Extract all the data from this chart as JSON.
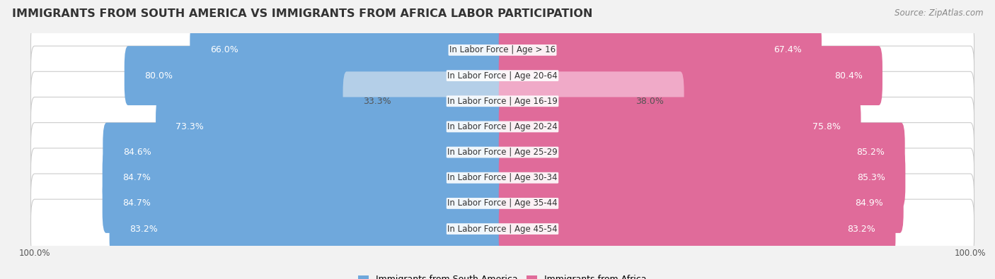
{
  "title": "IMMIGRANTS FROM SOUTH AMERICA VS IMMIGRANTS FROM AFRICA LABOR PARTICIPATION",
  "source": "Source: ZipAtlas.com",
  "categories": [
    "In Labor Force | Age > 16",
    "In Labor Force | Age 20-64",
    "In Labor Force | Age 16-19",
    "In Labor Force | Age 20-24",
    "In Labor Force | Age 25-29",
    "In Labor Force | Age 30-34",
    "In Labor Force | Age 35-44",
    "In Labor Force | Age 45-54"
  ],
  "south_america_values": [
    66.0,
    80.0,
    33.3,
    73.3,
    84.6,
    84.7,
    84.7,
    83.2
  ],
  "africa_values": [
    67.4,
    80.4,
    38.0,
    75.8,
    85.2,
    85.3,
    84.9,
    83.2
  ],
  "south_america_color": "#6fa8dc",
  "south_america_light_color": "#b4cfe8",
  "africa_color": "#e06b9a",
  "africa_light_color": "#f0aac8",
  "bg_color": "#f2f2f2",
  "bar_bg_color": "#e0e0e0",
  "label_color_dark": "#555555",
  "max_value": 100.0,
  "title_fontsize": 11.5,
  "label_fontsize": 9,
  "tick_fontsize": 8.5,
  "legend_fontsize": 9
}
